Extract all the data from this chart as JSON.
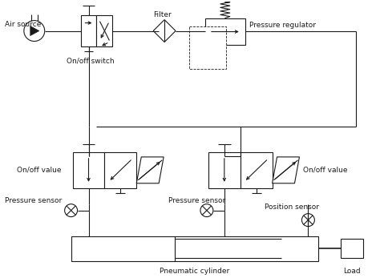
{
  "bg_color": "#ffffff",
  "line_color": "#1a1a1a",
  "text_color": "#1a1a1a",
  "figsize": [
    4.74,
    3.47
  ],
  "dpi": 100,
  "labels": {
    "air_source": "Air source",
    "on_off_switch": "On/off switch",
    "filter": "Filter",
    "pressure_regulator": "Pressure regulator",
    "on_off_value_left": "On/off value",
    "on_off_value_right": "On/off value",
    "pressure_sensor_left": "Pressure sensor",
    "pressure_sensor_right": "Pressure sensor",
    "position_sensor": "Position sensor",
    "pneumatic_cylinder": "Pneumatic cylinder",
    "load": "Load"
  }
}
